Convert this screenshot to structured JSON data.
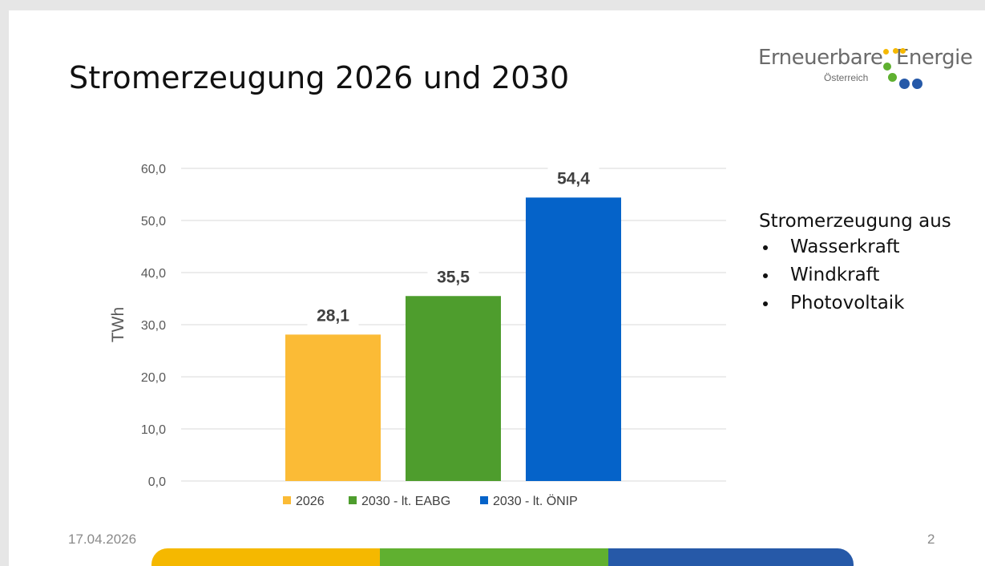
{
  "slide": {
    "title": "Stromerzeugung 2026 und 2030",
    "date": "17.04.2026",
    "page_number": "2"
  },
  "logo": {
    "word1": "Erneuerbare",
    "word2": "Energie",
    "subtitle": "Österreich",
    "dot_colors": [
      "#f5b800",
      "#f5b800",
      "#f5b800",
      "#5fb030",
      "#5fb030",
      "#2659a8",
      "#2659a8"
    ]
  },
  "bullets": {
    "heading": "Stromerzeugung aus",
    "items": [
      "Wasserkraft",
      "Windkraft",
      "Photovoltaik"
    ]
  },
  "band_colors": [
    "#f5b800",
    "#60b030",
    "#2659a8"
  ],
  "chart_data": {
    "type": "bar",
    "title": "",
    "xlabel": "",
    "ylabel": "TWh",
    "ylim": [
      0,
      60
    ],
    "yticks": [
      "0,0",
      "10,0",
      "20,0",
      "30,0",
      "40,0",
      "50,0",
      "60,0"
    ],
    "grid": true,
    "legend_position": "bottom",
    "series": [
      {
        "name": "2026",
        "values": [
          28.1
        ],
        "label": "28,1",
        "color": "#fbbb36"
      },
      {
        "name": "2030 - lt. EABG",
        "values": [
          35.5
        ],
        "label": "35,5",
        "color": "#4e9d2d"
      },
      {
        "name": "2030 - lt. ÖNIP",
        "values": [
          54.4
        ],
        "label": "54,4",
        "color": "#0563c9"
      }
    ]
  }
}
